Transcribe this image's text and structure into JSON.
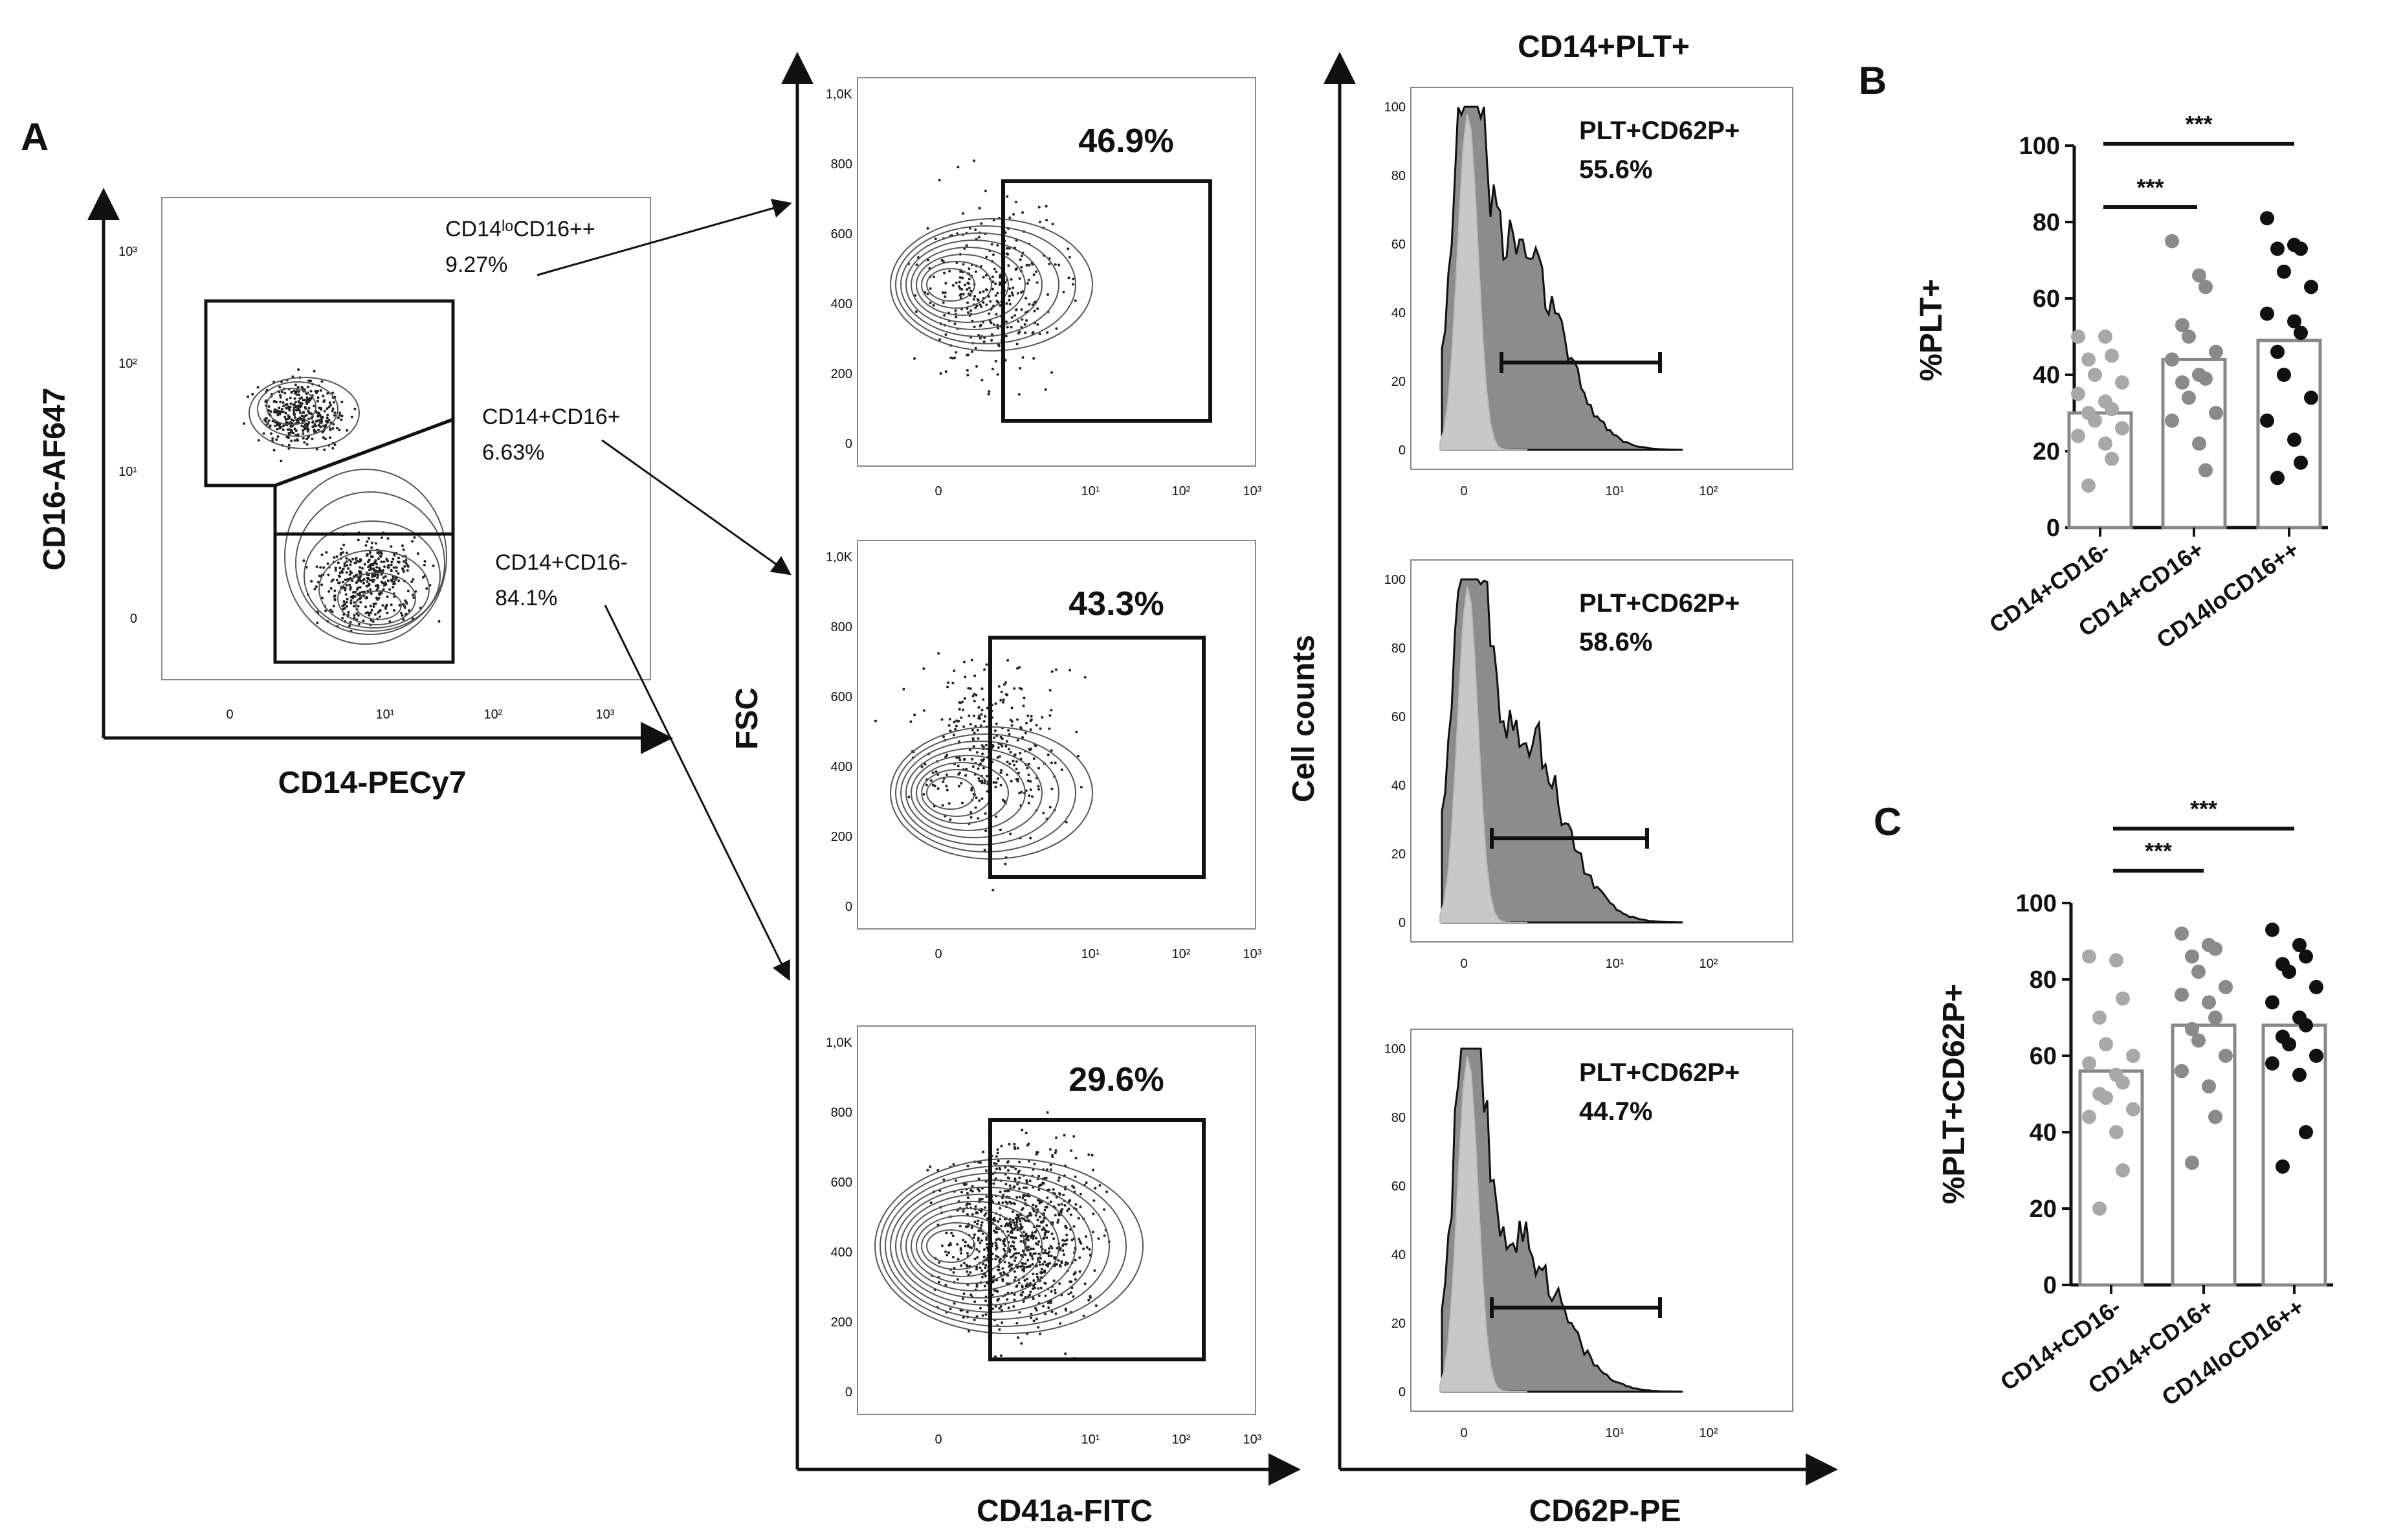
{
  "figure": {
    "panel_labels": [
      "A",
      "B",
      "C"
    ],
    "flow_axes": {
      "cd16_label": "CD16-AF647",
      "cd14_label": "CD14-PECy7",
      "fsc_label": "FSC",
      "cd41_label": "CD41a-FITC",
      "counts_label": "Cell counts",
      "cd62_label": "CD62P-PE",
      "hist_header": "CD14+PLT+"
    },
    "gating_ticks": {
      "y": [
        "10³",
        "10²",
        "10¹",
        "0"
      ],
      "x": [
        "0",
        "10¹",
        "10²",
        "10³"
      ]
    },
    "gates": [
      {
        "label": "CD14ˡᵒCD16++",
        "pct": "9.27%"
      },
      {
        "label": "CD14+CD16+",
        "pct": "6.63%"
      },
      {
        "label": "CD14+CD16-",
        "pct": "84.1%"
      }
    ],
    "fsc_ticks": [
      "1,0K",
      "800",
      "600",
      "400",
      "200",
      "0"
    ],
    "fsc_xticks": [
      "0",
      "10¹",
      "10²",
      "10³"
    ],
    "cd41_pcts": [
      "46.9%",
      "43.3%",
      "29.6%"
    ],
    "hist_gate_label": "PLT+CD62P+",
    "hist_pcts": [
      "55.6%",
      "58.6%",
      "44.7%"
    ],
    "hist_yticks_top": [
      "100",
      "80",
      "60",
      "40",
      "20",
      "0"
    ],
    "hist_yticks": [
      "100",
      "80",
      "60",
      "40",
      "20",
      "0"
    ],
    "hist_xticks": [
      "0",
      "10¹",
      "10²"
    ],
    "sig_marker": "***"
  },
  "chart_data": [
    {
      "type": "scatter",
      "panel": "B",
      "title": "",
      "xlabel": "",
      "ylabel": "%PLT+",
      "ylim": [
        0,
        100
      ],
      "yticks": [
        "0",
        "20",
        "40",
        "60",
        "80",
        "100"
      ],
      "categories": [
        "CD14+CD16-",
        "CD14+CD16+",
        "CD14loCD16++"
      ],
      "bar_means": [
        30,
        44,
        49
      ],
      "colors": [
        "#a8a8a8",
        "#8a8a8a",
        "#111111"
      ],
      "series": [
        {
          "name": "CD14+CD16-",
          "values": [
            50,
            50,
            45,
            44,
            40,
            38,
            35,
            33,
            31,
            30,
            28,
            26,
            24,
            22,
            18,
            11
          ]
        },
        {
          "name": "CD14+CD16+",
          "values": [
            75,
            66,
            63,
            53,
            50,
            46,
            44,
            40,
            39,
            38,
            34,
            30,
            28,
            22,
            15
          ]
        },
        {
          "name": "CD14loCD16++",
          "values": [
            81,
            74,
            73,
            73,
            67,
            63,
            56,
            54,
            51,
            46,
            40,
            34,
            28,
            23,
            17,
            13
          ]
        }
      ],
      "significance": [
        {
          "pair": [
            "CD14+CD16-",
            "CD14+CD16+"
          ],
          "label": "***"
        },
        {
          "pair": [
            "CD14+CD16-",
            "CD14loCD16++"
          ],
          "label": "***"
        }
      ]
    },
    {
      "type": "scatter",
      "panel": "C",
      "title": "",
      "xlabel": "",
      "ylabel": "%PLT+CD62P+",
      "ylim": [
        0,
        100
      ],
      "yticks": [
        "0",
        "20",
        "40",
        "60",
        "80",
        "100"
      ],
      "categories": [
        "CD14+CD16-",
        "CD14+CD16+",
        "CD14loCD16++"
      ],
      "bar_means": [
        56,
        68,
        68
      ],
      "colors": [
        "#a8a8a8",
        "#8a8a8a",
        "#111111"
      ],
      "series": [
        {
          "name": "CD14+CD16-",
          "values": [
            86,
            85,
            75,
            70,
            63,
            60,
            58,
            55,
            53,
            50,
            49,
            46,
            44,
            40,
            30,
            20
          ]
        },
        {
          "name": "CD14+CD16+",
          "values": [
            92,
            89,
            88,
            86,
            82,
            78,
            76,
            74,
            70,
            67,
            64,
            60,
            56,
            52,
            44,
            32
          ]
        },
        {
          "name": "CD14loCD16++",
          "values": [
            93,
            89,
            86,
            84,
            82,
            78,
            74,
            70,
            68,
            65,
            63,
            60,
            58,
            55,
            40,
            31
          ]
        }
      ],
      "significance": [
        {
          "pair": [
            "CD14+CD16-",
            "CD14+CD16+"
          ],
          "label": "***"
        },
        {
          "pair": [
            "CD14+CD16-",
            "CD14loCD16++"
          ],
          "label": "***"
        }
      ]
    }
  ]
}
